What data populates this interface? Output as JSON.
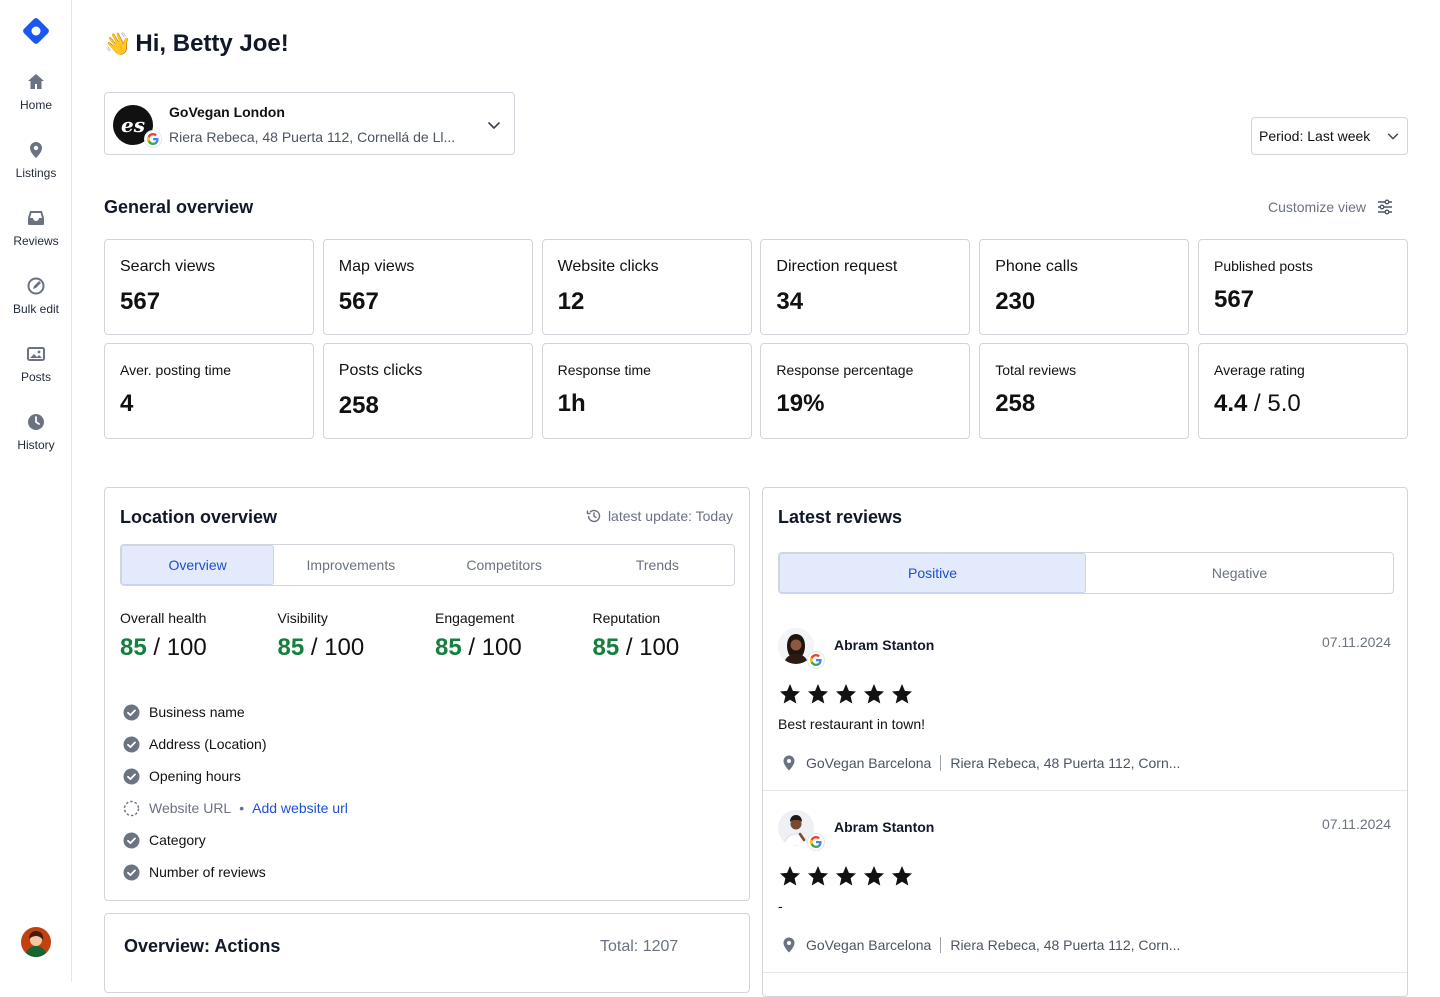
{
  "sidebar": {
    "items": [
      {
        "label": "Home",
        "icon": "home-icon"
      },
      {
        "label": "Listings",
        "icon": "map-pin-icon"
      },
      {
        "label": "Reviews",
        "icon": "inbox-icon"
      },
      {
        "label": "Bulk edit",
        "icon": "edit-icon"
      },
      {
        "label": "Posts",
        "icon": "images-icon"
      },
      {
        "label": "History",
        "icon": "clock-icon"
      }
    ]
  },
  "header": {
    "greeting_emoji": "👋",
    "greeting": "Hi, Betty Joe!"
  },
  "location": {
    "logo_text": "es",
    "name": "GoVegan London",
    "address": "Riera Rebeca, 48 Puerta 112, Cornellá de Ll..."
  },
  "period": {
    "label": "Period: Last week"
  },
  "general_overview": {
    "title": "General overview",
    "customize_label": "Customize view",
    "stats": [
      {
        "label": "Search views",
        "value": "567"
      },
      {
        "label": "Map views",
        "value": "567"
      },
      {
        "label": "Website clicks",
        "value": "12"
      },
      {
        "label": "Direction request",
        "value": "34"
      },
      {
        "label": "Phone calls",
        "value": "230"
      },
      {
        "label": "Published posts",
        "value": "567"
      },
      {
        "label": "Aver. posting time",
        "value": "4"
      },
      {
        "label": "Posts clicks",
        "value": "258"
      },
      {
        "label": "Response time",
        "value": "1h"
      },
      {
        "label": "Response percentage",
        "value": "19%"
      },
      {
        "label": "Total reviews",
        "value": "258"
      },
      {
        "label": "Average rating",
        "value": "4.4",
        "suffix": " / 5.0"
      }
    ]
  },
  "location_overview": {
    "title": "Location overview",
    "update": "latest update: Today",
    "tabs": [
      "Overview",
      "Improvements",
      "Competitors",
      "Trends"
    ],
    "active_tab": "Overview",
    "scores": [
      {
        "label": "Overall health",
        "value": "85",
        "max": " / 100"
      },
      {
        "label": "Visibility",
        "value": "85",
        "max": " / 100"
      },
      {
        "label": "Engagement",
        "value": "85",
        "max": " / 100"
      },
      {
        "label": "Reputation",
        "value": "85",
        "max": " / 100"
      }
    ],
    "checklist": [
      {
        "label": "Business name",
        "done": true
      },
      {
        "label": "Address (Location)",
        "done": true
      },
      {
        "label": "Opening hours",
        "done": true
      },
      {
        "label": "Website URL",
        "done": false,
        "separator": "•",
        "action": "Add website url"
      },
      {
        "label": "Category",
        "done": true
      },
      {
        "label": "Number of reviews",
        "done": true
      }
    ],
    "colors": {
      "score": "#15803d",
      "check": "#6b7280",
      "link": "#1d4ed8"
    }
  },
  "actions": {
    "title": "Overview: Actions",
    "total": "Total: 1207"
  },
  "latest_reviews": {
    "title": "Latest reviews",
    "tabs": [
      "Positive",
      "Negative"
    ],
    "active_tab": "Positive",
    "items": [
      {
        "name": "Abram Stanton",
        "date": "07.11.2024",
        "rating": 5,
        "text": "Best restaurant in town!",
        "location": "GoVegan Barcelona",
        "address": "Riera Rebeca, 48 Puerta 112, Corn..."
      },
      {
        "name": "Abram Stanton",
        "date": "07.11.2024",
        "rating": 5,
        "text": "-",
        "location": "GoVegan Barcelona",
        "address": "Riera Rebeca, 48 Puerta 112, Corn..."
      }
    ]
  },
  "theme": {
    "accent": "#1d4ed8",
    "active_tab_bg": "#e3eafc",
    "border": "#d1d5db",
    "brand": "#1a56f0"
  }
}
